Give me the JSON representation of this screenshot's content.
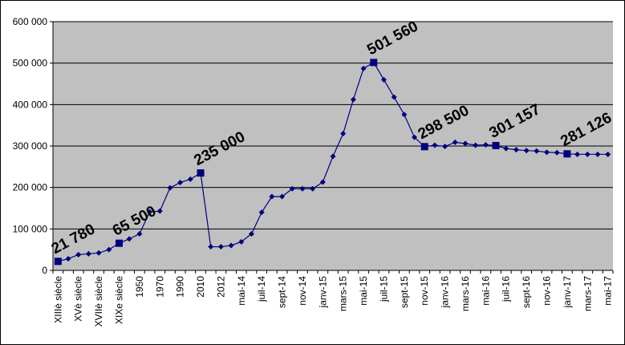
{
  "chart_data": {
    "type": "line",
    "title": "",
    "xlabel": "",
    "ylabel": "",
    "ylim": [
      0,
      600000
    ],
    "yticks": [
      "0",
      "100 000",
      "200 000",
      "300 000",
      "400 000",
      "500 000",
      "600 000"
    ],
    "grid": "horizontal",
    "legend": "none",
    "colors": {
      "line": "#000080",
      "plot_bg": "#c0c0c0",
      "grid": "#000000"
    },
    "categories": [
      "XIIIè siècle",
      "",
      "XVè siècle",
      "",
      "XVIIè siècle",
      "",
      "XIXe siècle",
      "",
      "1950",
      "",
      "1970",
      "",
      "1990",
      "",
      "2010",
      "",
      "2012",
      "",
      "mai-14",
      "",
      "juil-14",
      "",
      "sept-14",
      "",
      "nov-14",
      "",
      "janv-15",
      "",
      "mars-15",
      "",
      "mai-15",
      "",
      "juil-15",
      "",
      "sept-15",
      "",
      "nov-15",
      "",
      "janv-16",
      "",
      "mars-16",
      "",
      "mai-16",
      "",
      "juil-16",
      "",
      "sept-16",
      "",
      "nov-16",
      "",
      "janv-17",
      "",
      "mars-17",
      "",
      "mai-17"
    ],
    "values": [
      21780,
      28000,
      38000,
      40000,
      42000,
      50000,
      65500,
      76000,
      88000,
      141000,
      143000,
      199000,
      212000,
      220000,
      235000,
      57000,
      57000,
      60000,
      69000,
      88000,
      140000,
      178000,
      178000,
      197000,
      197000,
      197000,
      213000,
      275000,
      330000,
      412000,
      487000,
      501560,
      460000,
      418000,
      376000,
      321000,
      298500,
      302000,
      299000,
      309000,
      306000,
      302000,
      303000,
      301157,
      294000,
      291000,
      289000,
      288000,
      285000,
      284000,
      281126,
      280000,
      280000,
      280000,
      280000
    ],
    "highlighted_points": [
      {
        "index": 0,
        "label": "21 780"
      },
      {
        "index": 6,
        "label": "65 500"
      },
      {
        "index": 14,
        "label": "235 000"
      },
      {
        "index": 31,
        "label": "501 560"
      },
      {
        "index": 36,
        "label": "298 500"
      },
      {
        "index": 43,
        "label": "301 157"
      },
      {
        "index": 50,
        "label": "281 126"
      }
    ]
  }
}
